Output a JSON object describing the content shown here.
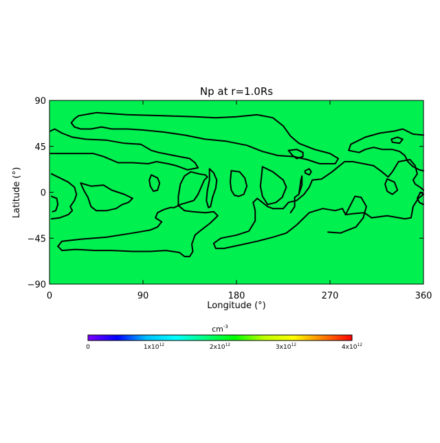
{
  "chart_data": {
    "type": "heatmap",
    "title": "Np at r=1.0Rs",
    "xlabel": "Longitude (°)",
    "ylabel": "Latitude (°)",
    "xlim": [
      0,
      360
    ],
    "ylim": [
      -90,
      90
    ],
    "xticks": [
      0,
      90,
      180,
      270,
      360
    ],
    "yticks": [
      90,
      45,
      0,
      -45,
      -90
    ],
    "xtick_labels": [
      "0",
      "90",
      "180",
      "270",
      "360"
    ],
    "ytick_labels": [
      "90",
      "45",
      "0",
      "−45",
      "−90"
    ],
    "field_color": "#00f050",
    "field_value": 2100000000000.0,
    "contour_color": "#000000",
    "colorbar": {
      "label": "cm",
      "label_exp": "-3",
      "range": [
        0,
        4000000000000.0
      ],
      "colors": [
        "#7f00ff",
        "#0000ff",
        "#00bfff",
        "#00ffff",
        "#00ff7f",
        "#00ff00",
        "#bfff00",
        "#ffff00",
        "#ff7f00",
        "#ff0000"
      ],
      "ticks": [
        {
          "value": 0,
          "mant": "0",
          "exp": ""
        },
        {
          "value": 1000000000000.0,
          "mant": "1x10",
          "exp": "12"
        },
        {
          "value": 2000000000000.0,
          "mant": "2x10",
          "exp": "12"
        },
        {
          "value": 3000000000000.0,
          "mant": "3x10",
          "exp": "12"
        },
        {
          "value": 4000000000000.0,
          "mant": "4x10",
          "exp": "12"
        }
      ]
    },
    "contours": [
      [
        [
          28,
          75
        ],
        [
          45,
          78
        ],
        [
          75,
          76
        ],
        [
          110,
          75
        ],
        [
          140,
          74
        ],
        [
          160,
          73
        ],
        [
          180,
          74
        ],
        [
          200,
          76
        ],
        [
          215,
          73
        ],
        [
          225,
          65
        ],
        [
          232,
          55
        ],
        [
          240,
          48
        ],
        [
          255,
          42
        ],
        [
          270,
          38
        ],
        [
          278,
          33
        ],
        [
          275,
          28
        ],
        [
          260,
          28
        ],
        [
          248,
          32
        ],
        [
          235,
          35
        ],
        [
          220,
          36
        ],
        [
          205,
          40
        ],
        [
          190,
          46
        ],
        [
          170,
          50
        ],
        [
          150,
          52
        ],
        [
          130,
          56
        ],
        [
          110,
          59
        ],
        [
          90,
          61
        ],
        [
          75,
          62
        ],
        [
          60,
          62
        ],
        [
          50,
          64
        ],
        [
          40,
          62
        ],
        [
          30,
          62
        ],
        [
          24,
          64
        ],
        [
          21,
          68
        ],
        [
          24,
          72
        ],
        [
          28,
          75
        ]
      ],
      [
        [
          1,
          60
        ],
        [
          5,
          62
        ],
        [
          12,
          58
        ],
        [
          22,
          54
        ],
        [
          35,
          52
        ],
        [
          55,
          51
        ],
        [
          72,
          48
        ],
        [
          88,
          47
        ],
        [
          98,
          41
        ],
        [
          105,
          39
        ],
        [
          115,
          37
        ],
        [
          125,
          35
        ],
        [
          135,
          33
        ],
        [
          140,
          29
        ],
        [
          143,
          24
        ],
        [
          133,
          22
        ],
        [
          122,
          26
        ],
        [
          114,
          28
        ],
        [
          103,
          30
        ],
        [
          95,
          28
        ],
        [
          80,
          29
        ],
        [
          66,
          29
        ],
        [
          52,
          35
        ],
        [
          42,
          38
        ],
        [
          30,
          38
        ],
        [
          16,
          38
        ],
        [
          8,
          38
        ],
        [
          1,
          38
        ]
      ],
      [
        [
          2,
          18
        ],
        [
          10,
          14
        ],
        [
          18,
          10
        ],
        [
          24,
          5
        ],
        [
          26,
          -2
        ],
        [
          24,
          -8
        ],
        [
          20,
          -14
        ],
        [
          22,
          -18
        ],
        [
          18,
          -22
        ],
        [
          10,
          -25
        ],
        [
          2,
          -26
        ]
      ],
      [
        [
          2,
          -4
        ],
        [
          7,
          -6
        ],
        [
          8,
          -12
        ],
        [
          6,
          -18
        ],
        [
          3,
          -19
        ]
      ],
      [
        [
          30,
          9
        ],
        [
          40,
          6
        ],
        [
          52,
          7
        ],
        [
          60,
          2
        ],
        [
          72,
          -2
        ],
        [
          80,
          -6
        ],
        [
          76,
          -10
        ],
        [
          70,
          -12
        ],
        [
          64,
          -16
        ],
        [
          55,
          -18
        ],
        [
          45,
          -18
        ],
        [
          40,
          -14
        ],
        [
          37,
          -5
        ],
        [
          33,
          2
        ],
        [
          30,
          9
        ]
      ],
      [
        [
          98,
          17
        ],
        [
          104,
          14
        ],
        [
          106,
          9
        ],
        [
          104,
          2
        ],
        [
          100,
          1
        ],
        [
          97,
          6
        ],
        [
          96,
          12
        ],
        [
          98,
          17
        ]
      ],
      [
        [
          136,
          20
        ],
        [
          144,
          18
        ],
        [
          150,
          17
        ],
        [
          152,
          15
        ],
        [
          149,
          12
        ],
        [
          146,
          5
        ],
        [
          143,
          -2
        ],
        [
          139,
          -8
        ],
        [
          126,
          -12
        ],
        [
          120,
          -15
        ],
        [
          116,
          -15
        ],
        [
          110,
          -17
        ],
        [
          104,
          -20
        ],
        [
          102,
          -25
        ],
        [
          108,
          -29
        ],
        [
          104,
          -34
        ],
        [
          97,
          -37
        ],
        [
          80,
          -40
        ],
        [
          55,
          -44
        ],
        [
          30,
          -46
        ],
        [
          12,
          -48
        ],
        [
          8,
          -53
        ],
        [
          12,
          -57
        ],
        [
          25,
          -56
        ],
        [
          44,
          -57
        ],
        [
          60,
          -57
        ],
        [
          80,
          -58
        ],
        [
          97,
          -58
        ],
        [
          112,
          -57
        ],
        [
          125,
          -59
        ],
        [
          130,
          -63
        ],
        [
          135,
          -63
        ],
        [
          138,
          -58
        ],
        [
          137,
          -51
        ],
        [
          140,
          -42
        ],
        [
          146,
          -37
        ],
        [
          155,
          -30
        ],
        [
          162,
          -23
        ],
        [
          158,
          -19
        ],
        [
          150,
          -20
        ],
        [
          138,
          -19
        ],
        [
          130,
          -18
        ],
        [
          124,
          -13
        ],
        [
          124,
          -4
        ],
        [
          126,
          8
        ],
        [
          130,
          16
        ],
        [
          136,
          20
        ]
      ],
      [
        [
          154,
          23
        ],
        [
          158,
          19
        ],
        [
          161,
          12
        ],
        [
          160,
          4
        ],
        [
          157,
          -5
        ],
        [
          155,
          -14
        ],
        [
          153,
          -15
        ],
        [
          151,
          -8
        ],
        [
          152,
          2
        ],
        [
          154,
          12
        ],
        [
          154,
          23
        ]
      ],
      [
        [
          175,
          21
        ],
        [
          183,
          20
        ],
        [
          188,
          14
        ],
        [
          190,
          6
        ],
        [
          187,
          -2
        ],
        [
          182,
          -4
        ],
        [
          178,
          -3
        ],
        [
          175,
          2
        ],
        [
          174,
          10
        ],
        [
          175,
          21
        ]
      ],
      [
        [
          205,
          25
        ],
        [
          215,
          20
        ],
        [
          225,
          12
        ],
        [
          228,
          5
        ],
        [
          224,
          -5
        ],
        [
          218,
          -10
        ],
        [
          210,
          -12
        ],
        [
          205,
          -4
        ],
        [
          203,
          6
        ],
        [
          204,
          15
        ],
        [
          205,
          25
        ]
      ],
      [
        [
          230,
          41
        ],
        [
          238,
          42
        ],
        [
          244,
          39
        ],
        [
          244,
          35
        ],
        [
          238,
          33
        ],
        [
          234,
          36
        ],
        [
          230,
          41
        ]
      ],
      [
        [
          240,
          -2
        ],
        [
          242,
          12
        ],
        [
          243,
          16
        ],
        [
          243,
          7
        ],
        [
          240,
          -2
        ]
      ],
      [
        [
          246,
          21
        ],
        [
          250,
          23
        ],
        [
          252,
          20
        ],
        [
          250,
          17
        ],
        [
          246,
          19
        ],
        [
          246,
          21
        ]
      ],
      [
        [
          253,
          12
        ],
        [
          262,
          13
        ],
        [
          272,
          20
        ],
        [
          284,
          30
        ],
        [
          292,
          30
        ],
        [
          312,
          26
        ],
        [
          320,
          20
        ],
        [
          326,
          15
        ],
        [
          330,
          20
        ],
        [
          336,
          30
        ],
        [
          347,
          32
        ],
        [
          352,
          26
        ],
        [
          354,
          18
        ],
        [
          350,
          12
        ],
        [
          352,
          8
        ],
        [
          358,
          4
        ],
        [
          360,
          2
        ]
      ],
      [
        [
          360,
          -2
        ],
        [
          355,
          -6
        ],
        [
          350,
          -14
        ],
        [
          348,
          -25
        ],
        [
          342,
          -26
        ],
        [
          325,
          -23
        ],
        [
          310,
          -25
        ],
        [
          303,
          -20
        ],
        [
          292,
          -21
        ],
        [
          285,
          -22
        ],
        [
          282,
          -16
        ],
        [
          275,
          -18
        ],
        [
          263,
          -16
        ],
        [
          250,
          -20
        ],
        [
          245,
          -25
        ],
        [
          238,
          -32
        ],
        [
          228,
          -40
        ],
        [
          215,
          -44
        ],
        [
          200,
          -48
        ],
        [
          182,
          -52
        ],
        [
          168,
          -55
        ],
        [
          160,
          -55
        ],
        [
          158,
          -50
        ],
        [
          165,
          -45
        ],
        [
          180,
          -42
        ],
        [
          192,
          -38
        ],
        [
          198,
          -28
        ],
        [
          198,
          -18
        ],
        [
          196,
          -10
        ],
        [
          200,
          -6
        ],
        [
          210,
          -14
        ],
        [
          215,
          -16
        ],
        [
          225,
          -16
        ],
        [
          230,
          -10
        ],
        [
          238,
          -8
        ],
        [
          245,
          -2
        ],
        [
          250,
          5
        ],
        [
          253,
          12
        ]
      ],
      [
        [
          232,
          -20
        ],
        [
          236,
          -14
        ],
        [
          236,
          -5
        ],
        [
          240,
          -2
        ]
      ],
      [
        [
          268,
          -39
        ],
        [
          280,
          -40
        ],
        [
          295,
          -34
        ],
        [
          302,
          -25
        ],
        [
          305,
          -14
        ],
        [
          300,
          -5
        ],
        [
          294,
          -4
        ],
        [
          290,
          -12
        ],
        [
          285,
          -22
        ]
      ],
      [
        [
          360,
          56
        ],
        [
          350,
          57
        ],
        [
          340,
          62
        ],
        [
          332,
          60
        ],
        [
          318,
          58
        ],
        [
          304,
          54
        ],
        [
          290,
          47
        ],
        [
          288,
          41
        ],
        [
          298,
          39
        ],
        [
          304,
          42
        ],
        [
          312,
          44
        ],
        [
          320,
          42
        ],
        [
          330,
          42
        ],
        [
          337,
          40
        ],
        [
          342,
          36
        ],
        [
          345,
          30
        ],
        [
          350,
          25
        ],
        [
          356,
          22
        ],
        [
          360,
          21
        ]
      ],
      [
        [
          329,
          52
        ],
        [
          335,
          54
        ],
        [
          340,
          52
        ],
        [
          337,
          48
        ],
        [
          330,
          49
        ],
        [
          329,
          52
        ]
      ],
      [
        [
          325,
          13
        ],
        [
          332,
          10
        ],
        [
          335,
          2
        ],
        [
          330,
          -2
        ],
        [
          325,
          1
        ],
        [
          323,
          8
        ],
        [
          325,
          13
        ]
      ],
      [
        [
          360,
          -2
        ],
        [
          357,
          0
        ],
        [
          354,
          -6
        ],
        [
          356,
          -10
        ],
        [
          360,
          -12
        ]
      ]
    ]
  }
}
